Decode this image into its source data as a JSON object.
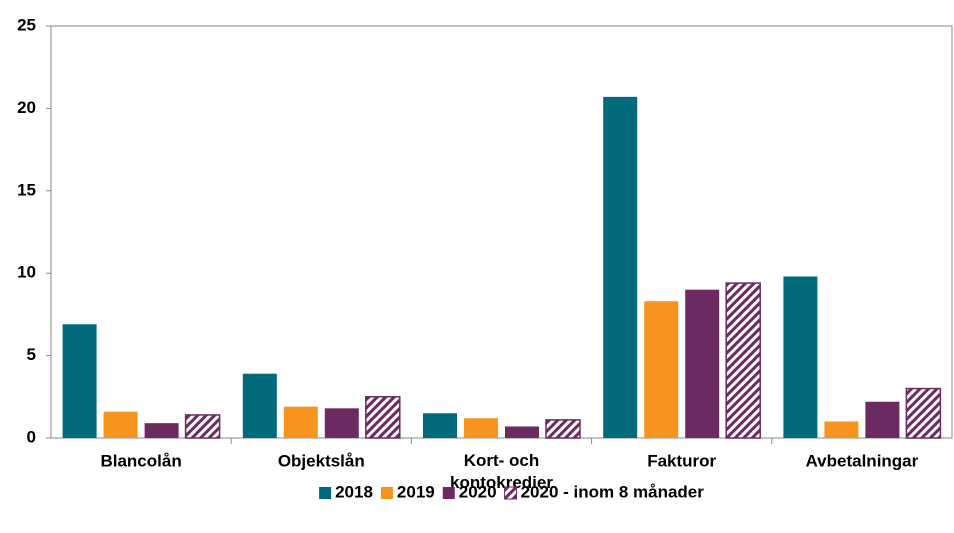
{
  "chart_data": {
    "type": "bar",
    "categories": [
      "Blancolån",
      "Objektslån",
      "Kort- och\nkontokredier",
      "Fakturor",
      "Avbetalningar"
    ],
    "series": [
      {
        "name": "2018",
        "color": "#006a7b",
        "values": [
          6.9,
          3.9,
          1.5,
          20.7,
          9.8
        ]
      },
      {
        "name": "2019",
        "color": "#f7941d",
        "values": [
          1.6,
          1.9,
          1.2,
          8.3,
          1.0
        ]
      },
      {
        "name": "2020",
        "color": "#6b2a60",
        "values": [
          0.9,
          1.8,
          0.7,
          9.0,
          2.2
        ]
      },
      {
        "name": "2020 - inom 8 månader",
        "color": "#6b2a60",
        "hatched": true,
        "values": [
          1.4,
          2.5,
          1.1,
          9.4,
          3.0
        ]
      }
    ],
    "ylim": [
      0,
      25
    ],
    "yticks": [
      0,
      5,
      10,
      15,
      20,
      25
    ],
    "grid": false,
    "legend": "bottom"
  }
}
